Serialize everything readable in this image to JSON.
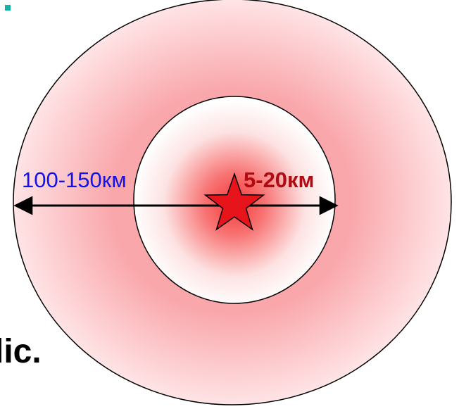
{
  "colors": {
    "outer_ring": "#f9a7ab",
    "outer_ring_light": "#ffe4e6",
    "inner_center": "#f43a3a",
    "star_fill": "#e8141b",
    "bullet": "#14b3a2",
    "outer_label_color": "#1212ee",
    "inner_label_color": "#b10a12",
    "outline": "#000000"
  },
  "labels": {
    "outer_range": "100-150км",
    "inner_range": "5-20км"
  },
  "partial_text": "lic.",
  "icons": {
    "epicenter": "star-icon",
    "bullet": "square-bullet-icon"
  }
}
